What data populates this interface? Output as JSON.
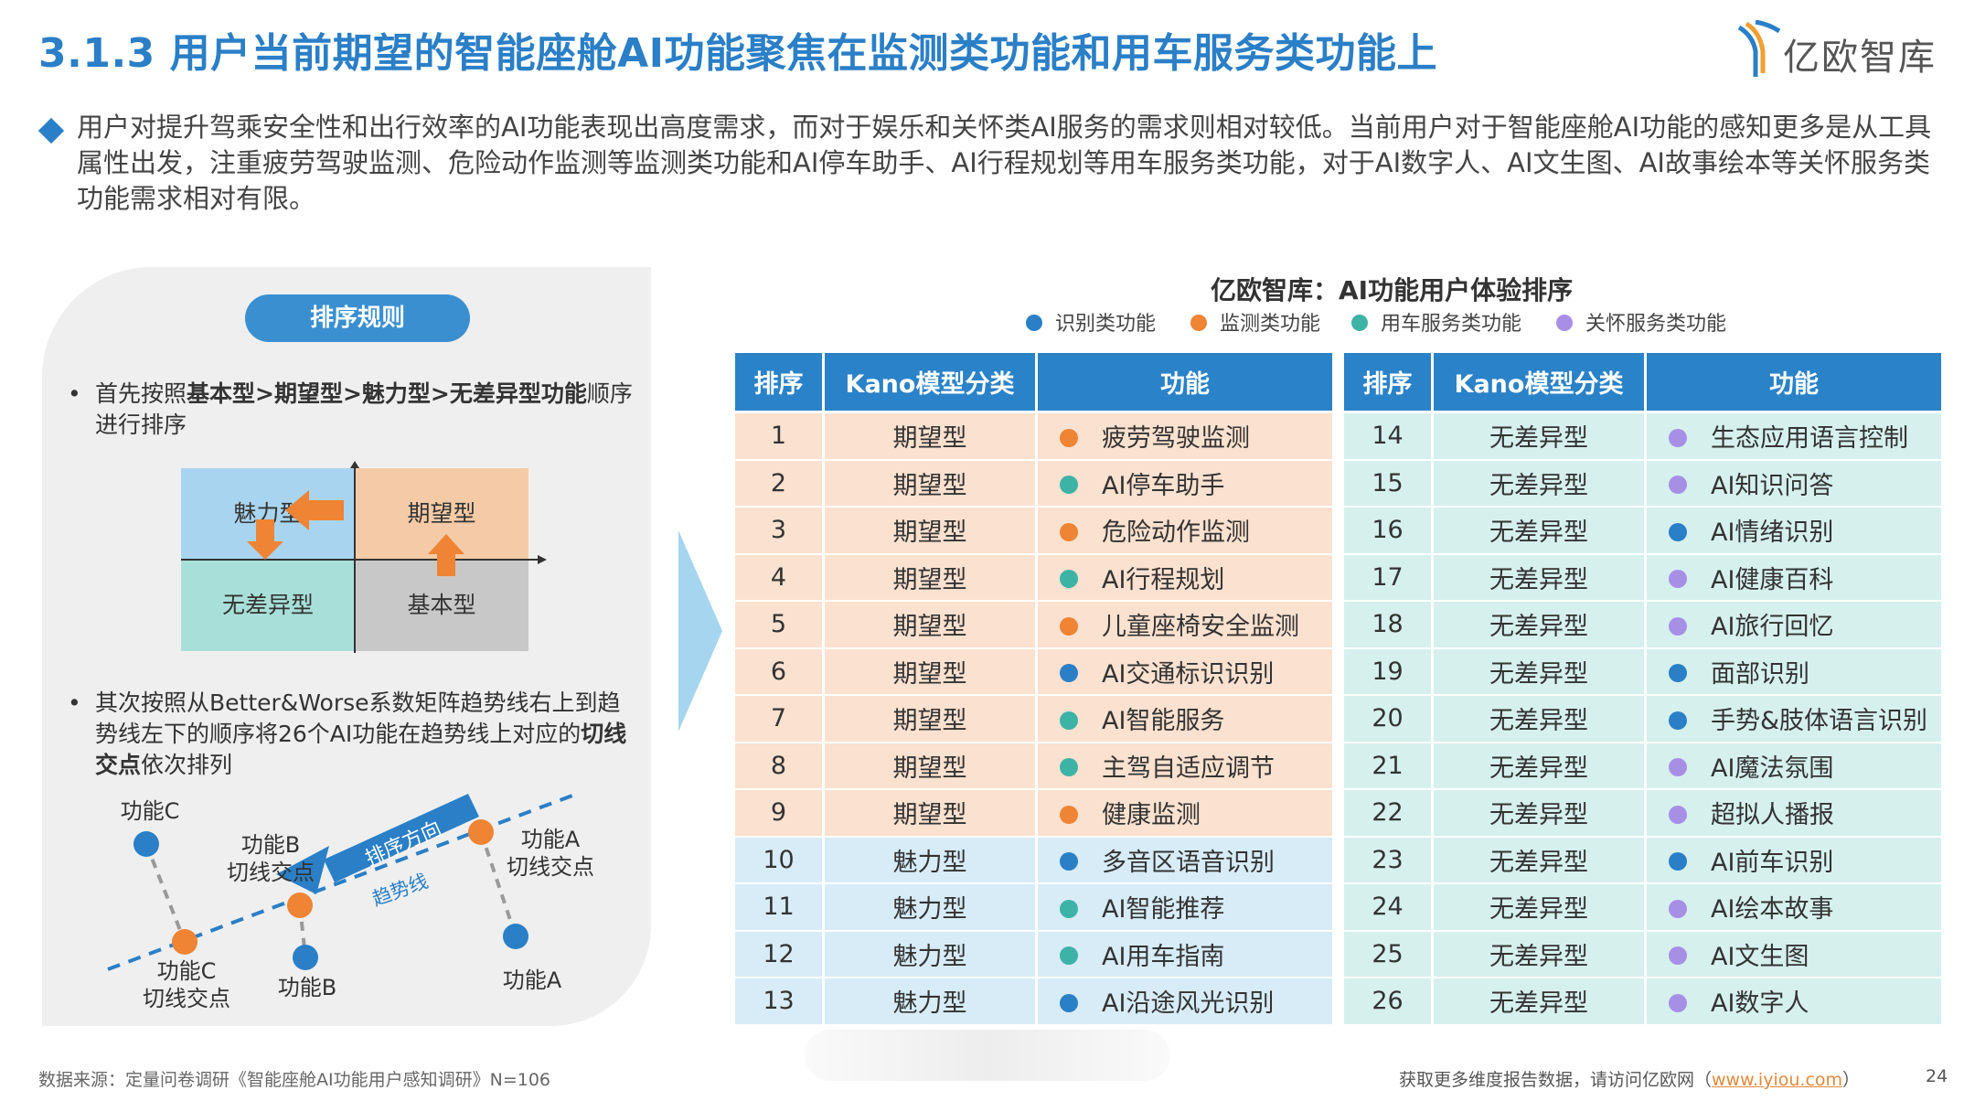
{
  "header": {
    "title": "3.1.3 用户当前期望的智能座舱AI功能聚焦在监测类功能和用车服务类功能上",
    "logo_text": "亿欧智库"
  },
  "summary": "用户对提升驾乘安全性和出行效率的AI功能表现出高度需求，而对于娱乐和关怀类AI服务的需求则相对较低。当前用户对于智能座舱AI功能的感知更多是从工具属性出发，注重疲劳驾驶监测、危险动作监测等监测类功能和AI停车助手、AI行程规划等用车服务类功能，对于AI数字人、AI文生图、AI故事绘本等关怀服务类功能需求相对有限。",
  "left_panel": {
    "pill": "排序规则",
    "bullet1": {
      "dot": "•",
      "pre": "首先按照",
      "bold": "基本型>期望型>魅力型>无差异型功能",
      "post": "顺序进行排序"
    },
    "quadrant": {
      "top_left": "魅力型",
      "top_right": "期望型",
      "bottom_left": "无差异型",
      "bottom_right": "基本型"
    },
    "bullet2": {
      "dot": "•",
      "pre": "其次按照从Better&Worse系数矩阵趋势线右上到趋势线左下的顺序将26个AI功能在趋势线上对应的",
      "bold": "切线交点",
      "post": "依次排列"
    },
    "diagram": {
      "func_c": "功能C",
      "func_b_tangent_1": "功能B",
      "func_b_tangent_2": "切线交点",
      "func_a_tangent_1": "功能A",
      "func_a_tangent_2": "切线交点",
      "func_c_tangent_1": "功能C",
      "func_c_tangent_2": "切线交点",
      "func_b": "功能B",
      "func_a": "功能A",
      "sort_direction": "排序方向",
      "trend_line": "趋势线"
    }
  },
  "chart": {
    "title": "亿欧智库：AI功能用户体验排序",
    "legend": [
      {
        "label": "识别类功能",
        "color": "#2a7fc7"
      },
      {
        "label": "监测类功能",
        "color": "#ee8434"
      },
      {
        "label": "用车服务类功能",
        "color": "#3db3a6"
      },
      {
        "label": "关怀服务类功能",
        "color": "#a78fe6"
      }
    ],
    "headers": [
      "排序",
      "Kano模型分类",
      "功能"
    ],
    "rows": [
      {
        "rank": "1",
        "kano": "期望型",
        "func": "疲劳驾驶监测",
        "color": "#ee8434",
        "group": "exp"
      },
      {
        "rank": "2",
        "kano": "期望型",
        "func": "AI停车助手",
        "color": "#3db3a6",
        "group": "exp"
      },
      {
        "rank": "3",
        "kano": "期望型",
        "func": "危险动作监测",
        "color": "#ee8434",
        "group": "exp"
      },
      {
        "rank": "4",
        "kano": "期望型",
        "func": "AI行程规划",
        "color": "#3db3a6",
        "group": "exp"
      },
      {
        "rank": "5",
        "kano": "期望型",
        "func": "儿童座椅安全监测",
        "color": "#ee8434",
        "group": "exp"
      },
      {
        "rank": "6",
        "kano": "期望型",
        "func": "AI交通标识识别",
        "color": "#2a7fc7",
        "group": "exp"
      },
      {
        "rank": "7",
        "kano": "期望型",
        "func": "AI智能服务",
        "color": "#3db3a6",
        "group": "exp"
      },
      {
        "rank": "8",
        "kano": "期望型",
        "func": "主驾自适应调节",
        "color": "#3db3a6",
        "group": "exp"
      },
      {
        "rank": "9",
        "kano": "期望型",
        "func": "健康监测",
        "color": "#ee8434",
        "group": "exp"
      },
      {
        "rank": "10",
        "kano": "魅力型",
        "func": "多音区语音识别",
        "color": "#2a7fc7",
        "group": "att"
      },
      {
        "rank": "11",
        "kano": "魅力型",
        "func": "AI智能推荐",
        "color": "#3db3a6",
        "group": "att"
      },
      {
        "rank": "12",
        "kano": "魅力型",
        "func": "AI用车指南",
        "color": "#3db3a6",
        "group": "att"
      },
      {
        "rank": "13",
        "kano": "魅力型",
        "func": "AI沿途风光识别",
        "color": "#2a7fc7",
        "group": "att"
      },
      {
        "rank": "14",
        "kano": "无差异型",
        "func": "生态应用语言控制",
        "color": "#a78fe6",
        "group": "ind"
      },
      {
        "rank": "15",
        "kano": "无差异型",
        "func": "AI知识问答",
        "color": "#a78fe6",
        "group": "ind"
      },
      {
        "rank": "16",
        "kano": "无差异型",
        "func": "AI情绪识别",
        "color": "#2a7fc7",
        "group": "ind"
      },
      {
        "rank": "17",
        "kano": "无差异型",
        "func": "AI健康百科",
        "color": "#a78fe6",
        "group": "ind"
      },
      {
        "rank": "18",
        "kano": "无差异型",
        "func": "AI旅行回忆",
        "color": "#a78fe6",
        "group": "ind"
      },
      {
        "rank": "19",
        "kano": "无差异型",
        "func": "面部识别",
        "color": "#2a7fc7",
        "group": "ind"
      },
      {
        "rank": "20",
        "kano": "无差异型",
        "func": "手势&肢体语言识别",
        "color": "#2a7fc7",
        "group": "ind"
      },
      {
        "rank": "21",
        "kano": "无差异型",
        "func": "AI魔法氛围",
        "color": "#a78fe6",
        "group": "ind"
      },
      {
        "rank": "22",
        "kano": "无差异型",
        "func": "超拟人播报",
        "color": "#a78fe6",
        "group": "ind"
      },
      {
        "rank": "23",
        "kano": "无差异型",
        "func": "AI前车识别",
        "color": "#2a7fc7",
        "group": "ind"
      },
      {
        "rank": "24",
        "kano": "无差异型",
        "func": "AI绘本故事",
        "color": "#a78fe6",
        "group": "ind"
      },
      {
        "rank": "25",
        "kano": "无差异型",
        "func": "AI文生图",
        "color": "#a78fe6",
        "group": "ind"
      },
      {
        "rank": "26",
        "kano": "无差异型",
        "func": "AI数字人",
        "color": "#a78fe6",
        "group": "ind"
      }
    ]
  },
  "footer": {
    "source": "数据来源：定量问卷调研《智能座舱AI功能用户感知调研》N=106",
    "more_pre": "获取更多维度报告数据，请访问亿欧网（",
    "more_link": "www.iyiou.com",
    "more_post": "）",
    "page": "24"
  }
}
